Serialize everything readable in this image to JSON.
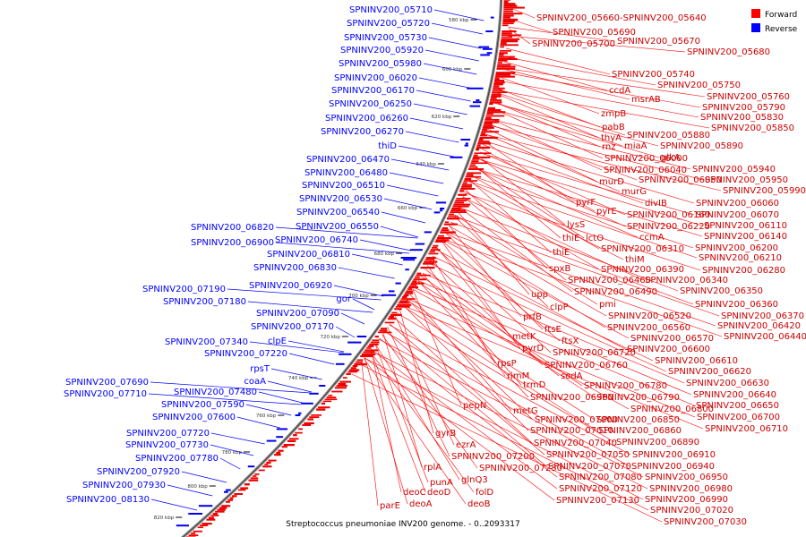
{
  "caption": "Streptococcus pneumoniae INV200 genome. - 0..2093317",
  "legend": [
    {
      "label": "Forward",
      "color": "#ff0000"
    },
    {
      "label": "Reverse",
      "color": "#0000ff"
    }
  ],
  "colors": {
    "forward": "#ee0000",
    "reverse": "#0000ee",
    "backbone": "#888888"
  },
  "ticks": [
    "580 kbp",
    "600 kbp",
    "620 kbp",
    "640 kbp",
    "660 kbp",
    "680 kbp",
    "700 kbp",
    "720 kbp",
    "740 kbp",
    "760 kbp",
    "780 kbp",
    "800 kbp",
    "820 kbp"
  ],
  "reverse_labels": [
    "SPNINV200_05710",
    "SPNINV200_05720",
    "SPNINV200_05730",
    "SPNINV200_05920",
    "SPNINV200_05980",
    "SPNINV200_06020",
    "SPNINV200_06170",
    "SPNINV200_06250",
    "SPNINV200_06260",
    "SPNINV200_06270",
    "thiD",
    "SPNINV200_06470",
    "SPNINV200_06480",
    "SPNINV200_06510",
    "SPNINV200_06530",
    "SPNINV200_06540",
    "SPNINV200_06820",
    "SPNINV200_06550",
    "SPNINV200_06900",
    "SPNINV200_06740",
    "SPNINV200_06810",
    "SPNINV200_06830",
    "SPNINV200_07190",
    "SPNINV200_06920",
    "SPNINV200_07180",
    "gor",
    "SPNINV200_07090",
    "SPNINV200_07170",
    "SPNINV200_07340",
    "clpE",
    "SPNINV200_07220",
    "rpsT",
    "coaA",
    "SPNINV200_07690",
    "SPNINV200_07710",
    "SPNINV200_07480",
    "SPNINV200_07590",
    "SPNINV200_07600",
    "SPNINV200_07720",
    "SPNINV200_07730",
    "SPNINV200_07780",
    "SPNINV200_07920",
    "SPNINV200_07930",
    "SPNINV200_08130"
  ],
  "forward_labels": [
    "SPNINV200_05660-SPNINV200_05640",
    "SPNINV200_05690",
    "SPNINV200_05700",
    "SPNINV200_05670",
    "SPNINV200_05680",
    "SPNINV200_05740",
    "SPNINV200_05750",
    "ccdA",
    "msrAB",
    "SPNINV200_05760",
    "SPNINV200_05790",
    "zmpB",
    "SPNINV200_05830",
    "pabB",
    "SPNINV200_05850",
    "thyA",
    "SPNINV200_05880",
    "rnz",
    "miaA",
    "SPNINV200_05890",
    "SPNINV200_06000",
    "glkA",
    "SPNINV200_06040",
    "SPNINV200_05940",
    "murD",
    "SPNINV200_06050",
    "SPNINV200_05950",
    "murG",
    "SPNINV200_05990",
    "divIB",
    "SPNINV200_06060",
    "pyrF",
    "pyrE",
    "SPNINV200_06160",
    "SPNINV200_06070",
    "lysS",
    "SPNINV200_06220",
    "SPNINV200_06110",
    "ccmA",
    "SPNINV200_06140",
    "thiE",
    "lctO",
    "SPNINV200_06310",
    "SPNINV200_06200",
    "thiE",
    "thiM",
    "SPNINV200_06210",
    "spxB",
    "SPNINV200_06390",
    "SPNINV200_06280",
    "SPNINV200_06460",
    "SPNINV200_06340",
    "SPNINV200_06490",
    "SPNINV200_06350",
    "upp",
    "clpP",
    "pmi",
    "SPNINV200_06360",
    "prfB",
    "SPNINV200_06520",
    "SPNINV200_06370",
    "ftsE",
    "SPNINV200_06560",
    "SPNINV200_06420",
    "metK",
    "ftsX",
    "SPNINV200_06570",
    "SPNINV200_06440",
    "pyrD",
    "SPNINV200_06600",
    "SPNINV200_06720",
    "rpsP",
    "SPNINV200_06610",
    "SPNINV200_06760",
    "sodA",
    "rimM",
    "SPNINV200_06620",
    "trmD",
    "SPNINV200_06630",
    "SPNINV200_06780",
    "SPNINV200_06960",
    "SPNINV200_06790",
    "SPNINV200_06640",
    "pepN",
    "metG",
    "SPNINV200_06800",
    "SPNINV200_06650",
    "SPNINV200_07000",
    "SPNINV200_06850",
    "SPNINV200_06700",
    "SPNINV200_07010",
    "SPNINV200_06860",
    "SPNINV200_06710",
    "gyrB",
    "SPNINV200_07040",
    "SPNINV200_06890",
    "ezrA",
    "SPNINV200_07050",
    "SPNINV200_06910",
    "SPNINV200_07200",
    "SPNINV200_07070",
    "SPNINV200_06940",
    "rplA",
    "SPNINV200_07230",
    "glnQ3",
    "SPNINV200_07080",
    "SPNINV200_06950",
    "punA",
    "SPNINV200_07120",
    "SPNINV200_06980",
    "deoC",
    "deoD",
    "folD",
    "SPNINV200_07130",
    "SPNINV200_06990",
    "deoA",
    "deoB",
    "SPNINV200_07020",
    "parE",
    "SPNINV200_07030"
  ]
}
